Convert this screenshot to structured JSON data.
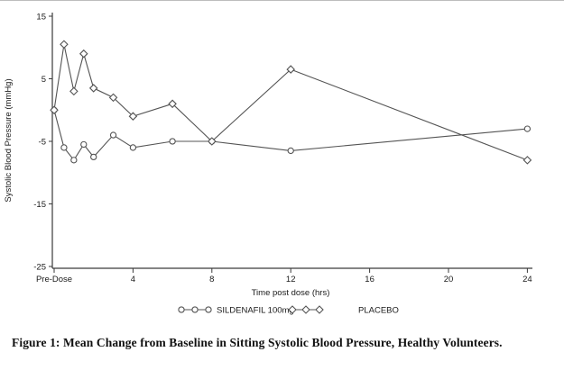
{
  "figure": {
    "caption": "Figure 1: Mean Change from Baseline in Sitting Systolic Blood Pressure, Healthy Volunteers."
  },
  "chart_data": {
    "type": "line",
    "title": "",
    "xlabel": "Time post dose (hrs)",
    "ylabel": "Systolic Blood Pressure (mmHg)",
    "x": [
      0,
      0.5,
      1,
      1.5,
      2,
      3,
      4,
      6,
      8,
      12,
      24
    ],
    "x_ticks": [
      {
        "hour": 0,
        "label": "Pre-Dose"
      },
      {
        "hour": 4,
        "label": "4"
      },
      {
        "hour": 8,
        "label": "8"
      },
      {
        "hour": 12,
        "label": "12"
      },
      {
        "hour": 16,
        "label": "16"
      },
      {
        "hour": 20,
        "label": "20"
      },
      {
        "hour": 24,
        "label": "24"
      }
    ],
    "y_ticks": [
      15,
      5,
      -5,
      -15,
      -25
    ],
    "ylim": [
      -25,
      15
    ],
    "xlim": [
      0,
      24
    ],
    "grid": false,
    "legend_position": "bottom-center",
    "series": [
      {
        "name": "SILDENAFIL 100mg",
        "marker": "circle",
        "values": [
          0,
          -6,
          -8,
          -5.5,
          -7.5,
          -4,
          -6,
          -5,
          -5,
          -6.5,
          -3
        ]
      },
      {
        "name": "PLACEBO",
        "marker": "diamond",
        "values": [
          0,
          10.5,
          3,
          9,
          3.5,
          2,
          -1,
          1,
          -5,
          6.5,
          -8
        ]
      }
    ],
    "colors": {
      "line": "#545454",
      "marker_fill": "#ffffff",
      "axis": "#3a3a3a",
      "text": "#1a1a1a",
      "background": "#ffffff"
    }
  }
}
